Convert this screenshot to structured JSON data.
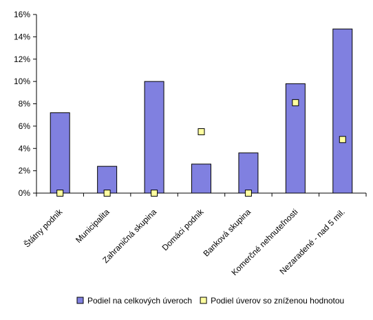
{
  "chart_data": {
    "type": "bar",
    "categories": [
      "Štátny podnik",
      "Municipalita",
      "Zahraničná skupina",
      "Domáci podnik",
      "Banková skupina",
      "Komerčné nehnuteľnosti",
      "Nezaradené - nad 5 mil."
    ],
    "series": [
      {
        "name": "Podiel na celkových úveroch",
        "kind": "bar",
        "color": "#8080e0",
        "values": [
          7.2,
          2.4,
          10.0,
          2.6,
          3.6,
          9.8,
          14.7
        ]
      },
      {
        "name": "Podiel úverov so zníženou hodnotou",
        "kind": "marker",
        "color": "#ffffa0",
        "values": [
          0.0,
          0.0,
          0.0,
          5.5,
          0.0,
          8.1,
          4.8
        ]
      }
    ],
    "yaxis": {
      "min": 0,
      "max": 16,
      "step": 2,
      "tick_labels": [
        "0%",
        "2%",
        "4%",
        "6%",
        "8%",
        "10%",
        "12%",
        "14%",
        "16%"
      ]
    },
    "grid": false,
    "legend_position": "bottom"
  }
}
